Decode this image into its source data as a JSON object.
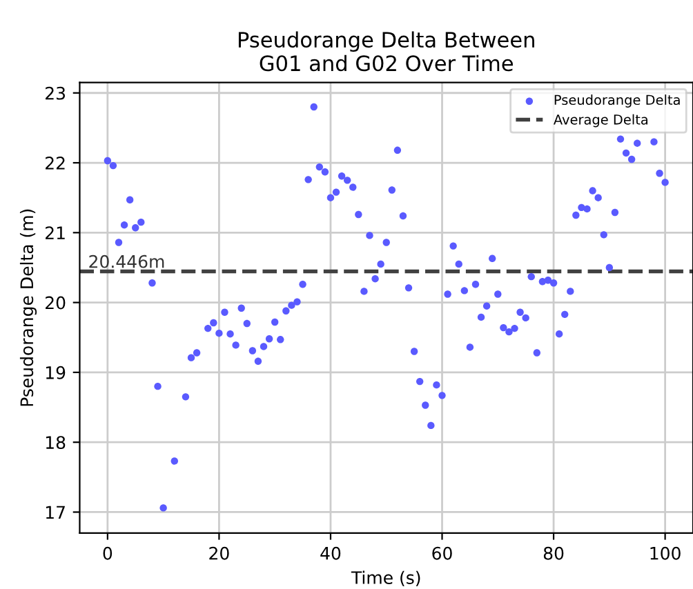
{
  "chart_data": {
    "type": "scatter",
    "title": "Pseudorange Delta Between\nG01 and G02 Over Time",
    "xlabel": "Time (s)",
    "ylabel": "Pseudorange Delta (m)",
    "xlim": [
      -5,
      105
    ],
    "ylim": [
      16.7,
      23.15
    ],
    "xticks": [
      0,
      20,
      40,
      60,
      80,
      100
    ],
    "yticks": [
      17,
      18,
      19,
      20,
      21,
      22,
      23
    ],
    "grid": true,
    "legend": "top right",
    "marker": "circle",
    "series": [
      {
        "name": "Pseudorange Delta",
        "color": "#5a5aff",
        "x": [
          0,
          1,
          2,
          3,
          4,
          5,
          6,
          8,
          9,
          10,
          12,
          14,
          15,
          16,
          18,
          19,
          20,
          21,
          22,
          23,
          24,
          25,
          26,
          27,
          28,
          29,
          30,
          31,
          32,
          33,
          34,
          35,
          36,
          37,
          38,
          39,
          40,
          41,
          42,
          43,
          44,
          45,
          46,
          47,
          48,
          49,
          50,
          51,
          52,
          53,
          54,
          55,
          56,
          57,
          58,
          59,
          60,
          61,
          62,
          63,
          64,
          65,
          66,
          67,
          68,
          69,
          70,
          71,
          72,
          73,
          74,
          75,
          76,
          77,
          78,
          79,
          80,
          81,
          82,
          83,
          84,
          85,
          86,
          87,
          88,
          89,
          90,
          91,
          92,
          93,
          94,
          95,
          98,
          99,
          100
        ],
        "values": [
          22.03,
          21.96,
          20.86,
          21.11,
          21.47,
          21.07,
          21.15,
          20.28,
          18.8,
          17.06,
          17.73,
          18.65,
          19.21,
          19.28,
          19.63,
          19.71,
          19.56,
          19.86,
          19.55,
          19.39,
          19.92,
          19.7,
          19.31,
          19.16,
          19.37,
          19.48,
          19.72,
          19.47,
          19.88,
          19.96,
          20.01,
          20.26,
          21.76,
          22.8,
          21.94,
          21.87,
          21.5,
          21.58,
          21.81,
          21.75,
          21.65,
          21.26,
          20.16,
          20.96,
          20.34,
          20.55,
          20.86,
          21.61,
          22.18,
          21.24,
          20.21,
          19.3,
          18.87,
          18.53,
          18.24,
          18.82,
          18.67,
          20.12,
          20.81,
          20.55,
          20.17,
          19.36,
          20.26,
          19.79,
          19.95,
          20.63,
          20.12,
          19.64,
          19.58,
          19.63,
          19.86,
          19.78,
          20.37,
          19.28,
          20.3,
          20.32,
          20.28,
          19.55,
          19.83,
          20.16,
          21.25,
          21.36,
          21.34,
          21.6,
          21.5,
          20.97,
          20.5,
          21.29,
          22.34,
          22.14,
          22.05,
          22.28,
          22.3,
          21.85,
          21.72
        ]
      }
    ],
    "ref_lines": [
      {
        "axis": "y",
        "value": 20.446,
        "label": "Average Delta",
        "color": "#404040",
        "line_style": "dashed"
      }
    ],
    "annotations": [
      {
        "text": "20.446m",
        "x": -3.5,
        "y": 20.446
      }
    ]
  }
}
